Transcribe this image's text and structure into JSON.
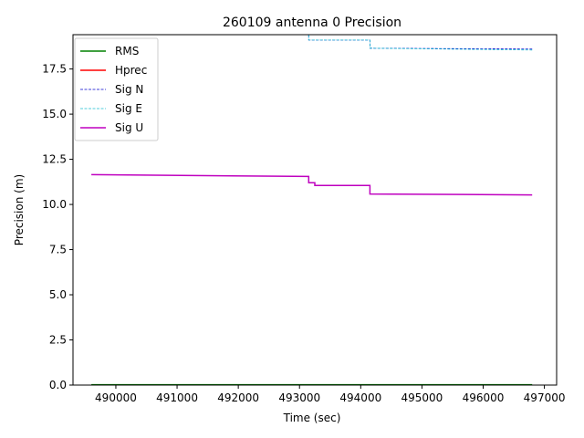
{
  "chart_data": {
    "type": "line",
    "title": "260109 antenna 0 Precision",
    "xlabel": "Time (sec)",
    "ylabel": "Precision (m)",
    "xlim": [
      489300,
      497200
    ],
    "ylim": [
      0,
      19.4
    ],
    "xticks": [
      490000,
      491000,
      492000,
      493000,
      494000,
      495000,
      496000,
      497000
    ],
    "yticks": [
      0.0,
      2.5,
      5.0,
      7.5,
      10.0,
      12.5,
      15.0,
      17.5
    ],
    "xtick_labels": [
      "490000",
      "491000",
      "492000",
      "493000",
      "494000",
      "495000",
      "496000",
      "497000"
    ],
    "ytick_labels": [
      "0.0",
      "2.5",
      "5.0",
      "7.5",
      "10.0",
      "12.5",
      "15.0",
      "17.5"
    ],
    "grid": false,
    "legend_position": "upper-left",
    "series": [
      {
        "name": "RMS",
        "color": "#008000",
        "dash": "solid",
        "x": [
          489600,
          496800
        ],
        "y": [
          0.02,
          0.02
        ]
      },
      {
        "name": "Hprec",
        "color": "#ff0000",
        "dash": "solid",
        "x": [],
        "y": []
      },
      {
        "name": "Sig N",
        "color": "#0000cc",
        "dash": "dashed",
        "x": [
          489600,
          493150,
          493150,
          494150,
          494150,
          496800
        ],
        "y": [
          19.45,
          19.4,
          19.1,
          19.1,
          18.65,
          18.6
        ]
      },
      {
        "name": "Sig E",
        "color": "#17becf",
        "dash": "dashed",
        "x": [
          489600,
          493150,
          493150,
          494150,
          494150,
          496800
        ],
        "y": [
          19.45,
          19.4,
          19.1,
          19.1,
          18.65,
          18.55
        ]
      },
      {
        "name": "Sig U",
        "color": "#bf00bf",
        "dash": "solid",
        "x": [
          489600,
          493150,
          493150,
          493250,
          493250,
          494150,
          494150,
          496800
        ],
        "y": [
          11.65,
          11.55,
          11.2,
          11.2,
          11.05,
          11.05,
          10.58,
          10.53
        ]
      }
    ]
  }
}
